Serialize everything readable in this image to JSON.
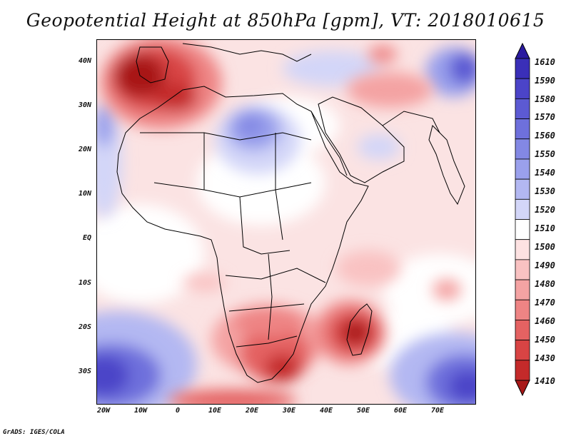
{
  "title": "Geopotential Height at 850hPa [gpm], VT: 2018010615",
  "footer": "GrADS: IGES/COLA",
  "lat_labels": [
    "40N",
    "30N",
    "20N",
    "10N",
    "EQ",
    "10S",
    "20S",
    "30S"
  ],
  "lon_labels": [
    "20W",
    "10W",
    "0",
    "10E",
    "20E",
    "30E",
    "40E",
    "50E",
    "60E",
    "70E"
  ],
  "colorbar": {
    "levels": [
      "1610",
      "1590",
      "1580",
      "1570",
      "1560",
      "1550",
      "1540",
      "1530",
      "1520",
      "1510",
      "1500",
      "1490",
      "1480",
      "1470",
      "1460",
      "1450",
      "1430",
      "1410"
    ],
    "colors": [
      "#2a1aa0",
      "#3a2fb8",
      "#4b44c8",
      "#5c5ad3",
      "#6e70dc",
      "#8388e4",
      "#9aa0ec",
      "#b3b8f2",
      "#d3d6f8",
      "#ffffff",
      "#fde2e2",
      "#f9c2c2",
      "#f4a3a3",
      "#ee8484",
      "#e46262",
      "#d84444",
      "#c42a2a",
      "#a81818"
    ]
  },
  "colors": {
    "map_bg": "#fbe6e6",
    "coast": "#000000"
  }
}
